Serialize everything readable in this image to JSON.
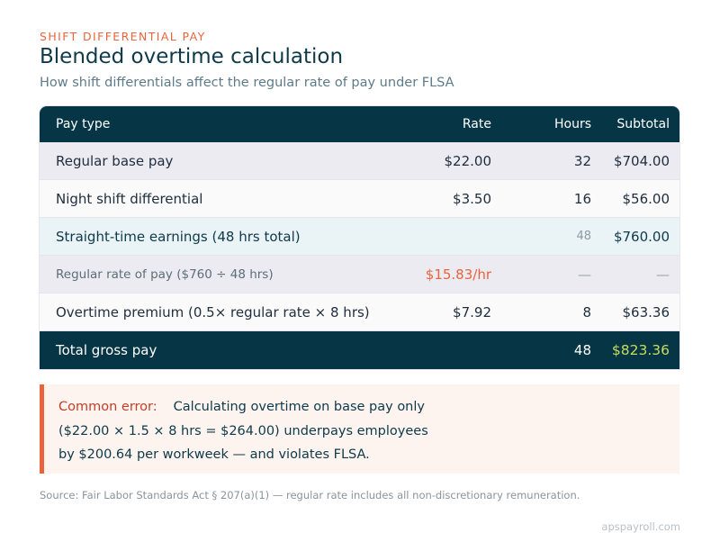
{
  "header": {
    "eyebrow": "SHIFT DIFFERENTIAL PAY",
    "title": "Blended overtime calculation",
    "subtitle": "How shift differentials affect the regular rate of pay under FLSA"
  },
  "table": {
    "columns": {
      "type": "Pay type",
      "rate": "Rate",
      "hours": "Hours",
      "subtotal": "Subtotal"
    },
    "rows": [
      {
        "type": "Regular base pay",
        "rate": "$22.00",
        "hours": "32",
        "subtotal": "$704.00"
      },
      {
        "type": "Night shift differential",
        "rate": "$3.50",
        "hours": "16",
        "subtotal": "$56.00"
      },
      {
        "type": "Straight-time earnings (48 hrs total)",
        "rate": "",
        "hours": "48",
        "subtotal": "$760.00"
      },
      {
        "type": "Regular rate of pay ($760 ÷ 48 hrs)",
        "rate": "$15.83/hr",
        "hours": "—",
        "subtotal": "—"
      },
      {
        "type": "Overtime premium (0.5× regular rate × 8 hrs)",
        "rate": "$7.92",
        "hours": "8",
        "subtotal": "$63.36"
      }
    ],
    "total": {
      "type": "Total gross pay",
      "rate": "",
      "hours": "48",
      "subtotal": "$823.36"
    }
  },
  "callout": {
    "label": "Common error:",
    "line1": "Calculating overtime on base pay only",
    "line2": "($22.00 × 1.5 × 8 hrs = $264.00) underpays employees",
    "line3": "by $200.64 per workweek — and violates FLSA."
  },
  "footer": {
    "source": "Source: Fair Labor Standards Act § 207(a)(1) — regular rate includes all non-discretionary remuneration.",
    "brand": "apspayroll.com"
  },
  "colors": {
    "accent": "#e8643c",
    "header_bg": "#063645",
    "total_highlight": "#c8dc5c"
  }
}
